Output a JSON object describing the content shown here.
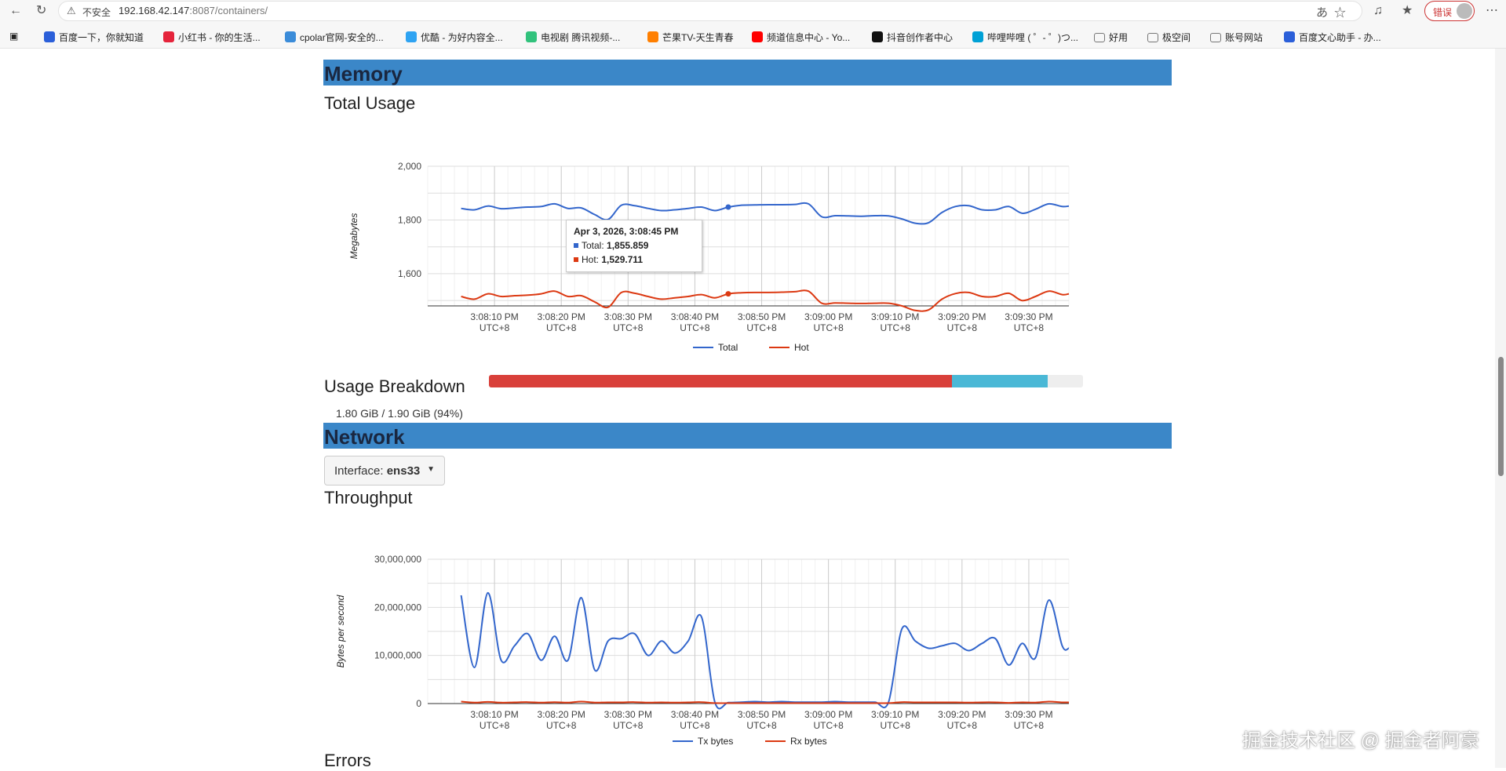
{
  "browser": {
    "insecure_label": "不安全",
    "url_host": "192.168.42.147",
    "url_rest": ":8087/containers/",
    "error_label": "错误"
  },
  "bookmarks": [
    {
      "label": "百度一下，你就知道",
      "color": "#2b5fd9"
    },
    {
      "label": "小红书 - 你的生活...",
      "color": "#e5243b"
    },
    {
      "label": "cpolar官网-安全的...",
      "color": "#3b8cd9"
    },
    {
      "label": "优酷 - 为好内容全...",
      "color": "#2ea3f2"
    },
    {
      "label": "电视剧 腾讯视频-...",
      "color": "#31c27c"
    },
    {
      "label": "芒果TV-天生青春",
      "color": "#ff7f00"
    },
    {
      "label": "频道信息中心 - Yo...",
      "color": "#ff0000"
    },
    {
      "label": "抖音创作者中心",
      "color": "#111111"
    },
    {
      "label": "哔哩哔哩 ( ゜- ゜)つ...",
      "color": "#00a1d6"
    },
    {
      "label": "好用",
      "color": "#777777"
    },
    {
      "label": "极空间",
      "color": "#777777"
    },
    {
      "label": "账号网站",
      "color": "#777777"
    },
    {
      "label": "百度文心助手 - 办...",
      "color": "#2b5fd9"
    }
  ],
  "memory": {
    "section_title": "Memory",
    "total_usage_title": "Total Usage",
    "breakdown_title": "Usage Breakdown",
    "breakdown_text": "1.80 GiB / 1.90 GiB (94%)",
    "breakdown_segments": [
      {
        "name": "hot",
        "fraction": 0.78,
        "color": "#d9403a"
      },
      {
        "name": "cold",
        "fraction": 0.16,
        "color": "#4ab8d6"
      }
    ],
    "tooltip": {
      "time": "Apr 3, 2026, 3:08:45 PM",
      "rows": [
        {
          "label": "Total:",
          "value": "1,855.859",
          "color": "#3366cc"
        },
        {
          "label": "Hot:",
          "value": "1,529.711",
          "color": "#dc3912"
        }
      ]
    }
  },
  "network": {
    "section_title": "Network",
    "interface_prefix": "Interface:",
    "interface_name": "ens33",
    "throughput_title": "Throughput"
  },
  "errors_title": "Errors",
  "watermark": "掘金技术社区 @ 掘金者阿豪",
  "chart_data": [
    {
      "type": "line",
      "ylabel": "Megabytes",
      "y_ticks": [
        "2,000",
        "1,800",
        "1,600"
      ],
      "ylim": [
        1480,
        2000
      ],
      "x_ticks": [
        "3:08:10 PM",
        "3:08:20 PM",
        "3:08:30 PM",
        "3:08:40 PM",
        "3:08:50 PM",
        "3:09:00 PM",
        "3:09:10 PM",
        "3:09:20 PM",
        "3:09:30 PM"
      ],
      "x_tick_sub": "UTC+8",
      "x_seconds": [
        5,
        7,
        9,
        11,
        13,
        15,
        17,
        19,
        21,
        23,
        25,
        27,
        29,
        31,
        33,
        35,
        37,
        39,
        41,
        43,
        45,
        47,
        49,
        51,
        53,
        55,
        57,
        59,
        61,
        63,
        65,
        67,
        69,
        71,
        73,
        75,
        77,
        79,
        81,
        83,
        85,
        87,
        89,
        91,
        93,
        95,
        96
      ],
      "grid": true,
      "legend_position": "bottom",
      "series": [
        {
          "name": "Total",
          "color": "#3366cc",
          "values": [
            1843,
            1838,
            1852,
            1842,
            1845,
            1848,
            1850,
            1860,
            1843,
            1845,
            1820,
            1802,
            1855,
            1853,
            1843,
            1835,
            1838,
            1843,
            1848,
            1835,
            1848,
            1855,
            1856,
            1857,
            1857,
            1858,
            1860,
            1812,
            1816,
            1815,
            1814,
            1816,
            1815,
            1804,
            1788,
            1790,
            1828,
            1850,
            1853,
            1838,
            1838,
            1850,
            1825,
            1840,
            1860,
            1850,
            1852
          ]
        },
        {
          "name": "Hot",
          "color": "#dc3912",
          "values": [
            1515,
            1505,
            1525,
            1515,
            1518,
            1520,
            1525,
            1535,
            1515,
            1518,
            1495,
            1475,
            1530,
            1527,
            1515,
            1505,
            1510,
            1515,
            1522,
            1510,
            1525,
            1529,
            1530,
            1530,
            1531,
            1533,
            1535,
            1490,
            1491,
            1490,
            1489,
            1490,
            1490,
            1480,
            1463,
            1465,
            1505,
            1526,
            1530,
            1515,
            1515,
            1527,
            1500,
            1515,
            1535,
            1522,
            1525
          ]
        }
      ]
    },
    {
      "type": "line",
      "ylabel": "Bytes per second",
      "y_ticks": [
        "30,000,000",
        "20,000,000",
        "10,000,000",
        "0"
      ],
      "ylim": [
        0,
        30000000
      ],
      "x_ticks": [
        "3:08:10 PM",
        "3:08:20 PM",
        "3:08:30 PM",
        "3:08:40 PM",
        "3:08:50 PM",
        "3:09:00 PM",
        "3:09:10 PM",
        "3:09:20 PM",
        "3:09:30 PM"
      ],
      "x_tick_sub": "UTC+8",
      "x_seconds": [
        5,
        7,
        9,
        11,
        13,
        15,
        17,
        19,
        21,
        23,
        25,
        27,
        29,
        31,
        33,
        35,
        37,
        39,
        41,
        43,
        45,
        47,
        49,
        51,
        53,
        55,
        57,
        59,
        61,
        63,
        65,
        67,
        69,
        71,
        73,
        75,
        77,
        79,
        81,
        83,
        85,
        87,
        89,
        91,
        93,
        95,
        96
      ],
      "grid": true,
      "legend_position": "bottom",
      "series": [
        {
          "name": "Tx bytes",
          "color": "#3366cc",
          "values": [
            22500000,
            7500000,
            23000000,
            9000000,
            12000000,
            14500000,
            9000000,
            14000000,
            9000000,
            22000000,
            7000000,
            13000000,
            13500000,
            14500000,
            10000000,
            13000000,
            10500000,
            13000000,
            18000000,
            300000,
            200000,
            300000,
            400000,
            300000,
            400000,
            300000,
            300000,
            300000,
            400000,
            300000,
            300000,
            300000,
            300000,
            15500000,
            13000000,
            11500000,
            12000000,
            12500000,
            11000000,
            12500000,
            13500000,
            8000000,
            12500000,
            9500000,
            21500000,
            12000000,
            11500000
          ]
        },
        {
          "name": "Rx bytes",
          "color": "#dc3912",
          "values": [
            400000,
            200000,
            350000,
            200000,
            250000,
            300000,
            200000,
            300000,
            200000,
            400000,
            200000,
            250000,
            250000,
            300000,
            200000,
            250000,
            200000,
            250000,
            300000,
            100000,
            100000,
            100000,
            100000,
            100000,
            100000,
            100000,
            100000,
            100000,
            100000,
            100000,
            100000,
            100000,
            100000,
            300000,
            250000,
            250000,
            250000,
            250000,
            200000,
            250000,
            250000,
            150000,
            250000,
            200000,
            400000,
            250000,
            250000
          ]
        }
      ]
    }
  ]
}
